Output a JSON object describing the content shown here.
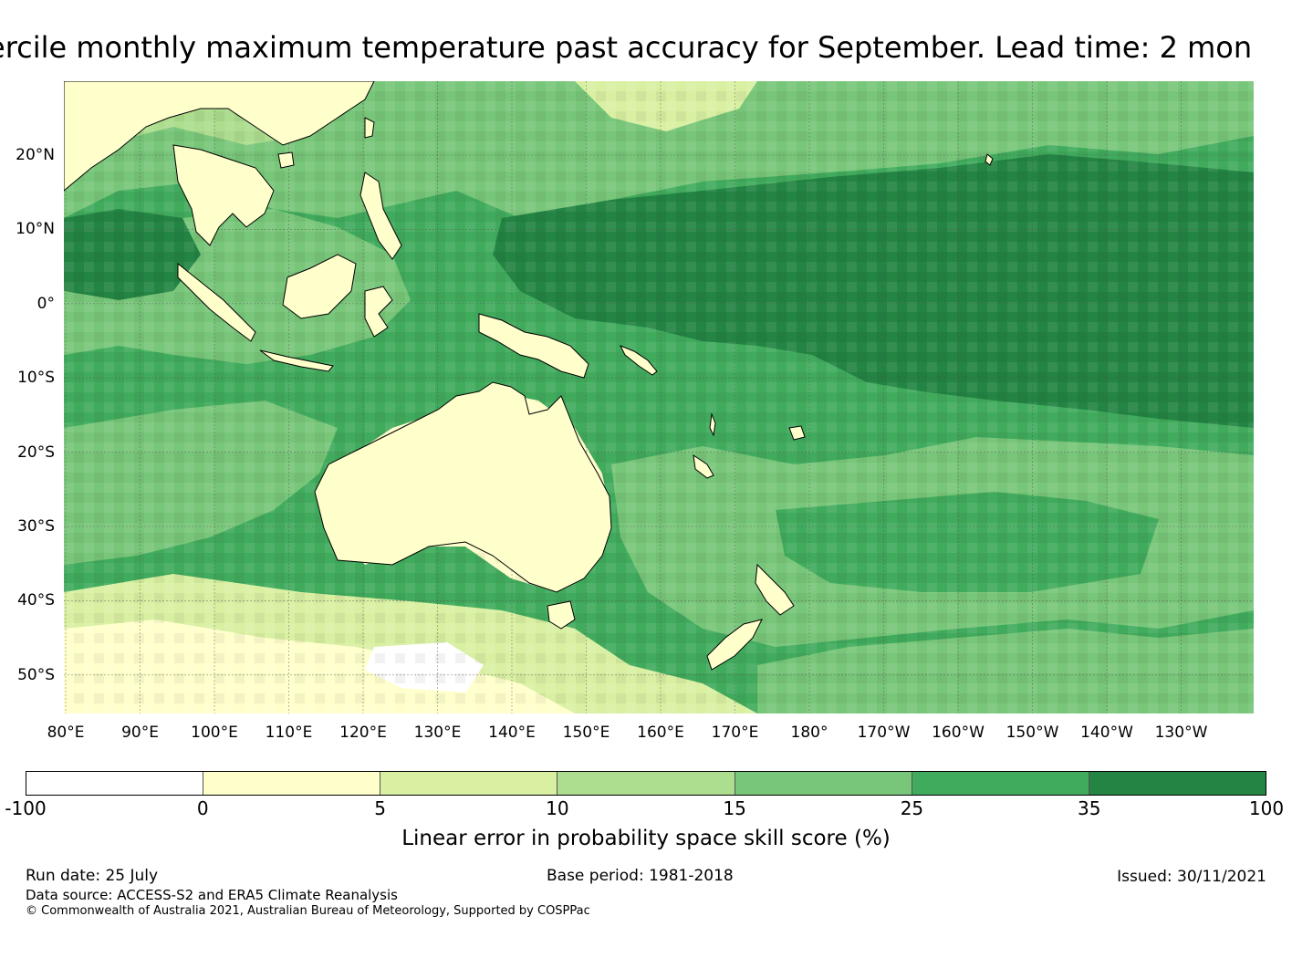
{
  "title": "ercile monthly maximum temperature past accuracy for September. Lead time: 2 mon",
  "latitude_labels": [
    "20°N",
    "10°N",
    "0°",
    "10°S",
    "20°S",
    "30°S",
    "40°S",
    "50°S"
  ],
  "longitude_labels": [
    "80°E",
    "90°E",
    "100°E",
    "110°E",
    "120°E",
    "130°E",
    "140°E",
    "150°E",
    "160°E",
    "170°E",
    "180°",
    "170°W",
    "160°W",
    "150°W",
    "140°W",
    "130°W"
  ],
  "legend": {
    "label": "Linear error in probability space skill score (%)",
    "ticks": [
      "-100",
      "0",
      "5",
      "10",
      "15",
      "25",
      "35",
      "100"
    ],
    "colors": [
      "#ffffff",
      "#ffffcc",
      "#d9f0a3",
      "#addd8e",
      "#78c679",
      "#41ab5d",
      "#238443"
    ]
  },
  "map_colors": {
    "land_outline": "#000000",
    "grid": "#555555"
  },
  "footer": {
    "run_date": "Run date: 25 July",
    "base_period": "Base period: 1981-2018",
    "issued": "Issued: 30/11/2021",
    "data_source": "Data source: ACCESS-S2 and ERA5 Climate Reanalysis",
    "copyright": "© Commonwealth of Australia 2021, Australian Bureau of Meteorology, Supported by COSPPac"
  }
}
